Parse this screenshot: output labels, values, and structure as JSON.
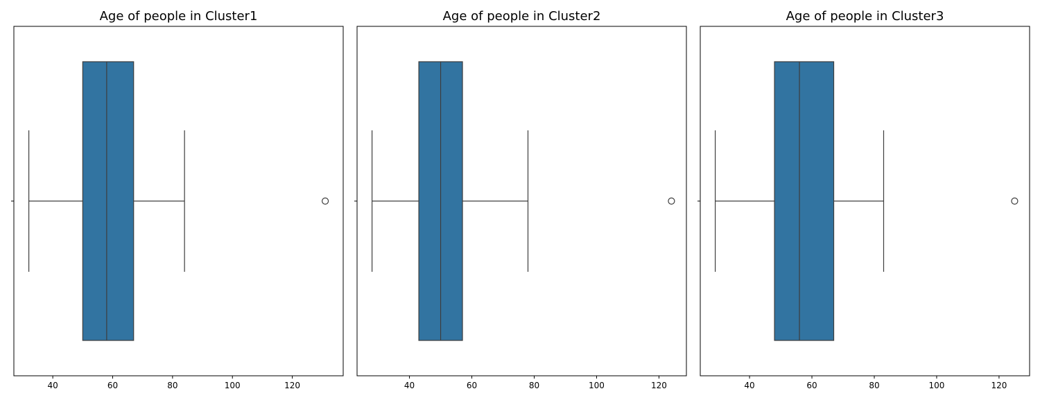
{
  "chart_data": [
    {
      "type": "box",
      "title": "Age of people in Cluster1",
      "xlabel": "",
      "ylabel": "",
      "xlim": [
        27,
        137
      ],
      "xticks": [
        40,
        60,
        80,
        100,
        120
      ],
      "grid": false,
      "box_color": "#3274a1",
      "line_color": "#3d3d3d",
      "stats": {
        "whisker_low": 32,
        "q1": 50,
        "median": 58,
        "q3": 67,
        "whisker_high": 84
      },
      "outliers": [
        131
      ]
    },
    {
      "type": "box",
      "title": "Age of people in Cluster2",
      "xlabel": "",
      "ylabel": "",
      "xlim": [
        23.2,
        128.8
      ],
      "xticks": [
        40,
        60,
        80,
        100,
        120
      ],
      "grid": false,
      "box_color": "#3274a1",
      "line_color": "#3d3d3d",
      "stats": {
        "whisker_low": 28,
        "q1": 43,
        "median": 50,
        "q3": 57,
        "whisker_high": 78
      },
      "outliers": [
        124
      ]
    },
    {
      "type": "box",
      "title": "Age of people in Cluster3",
      "xlabel": "",
      "ylabel": "",
      "xlim": [
        24.2,
        129.8
      ],
      "xticks": [
        40,
        60,
        80,
        100,
        120
      ],
      "grid": false,
      "box_color": "#3274a1",
      "line_color": "#3d3d3d",
      "stats": {
        "whisker_low": 29,
        "q1": 48,
        "median": 56,
        "q3": 67,
        "whisker_high": 83
      },
      "outliers": [
        125
      ]
    }
  ]
}
